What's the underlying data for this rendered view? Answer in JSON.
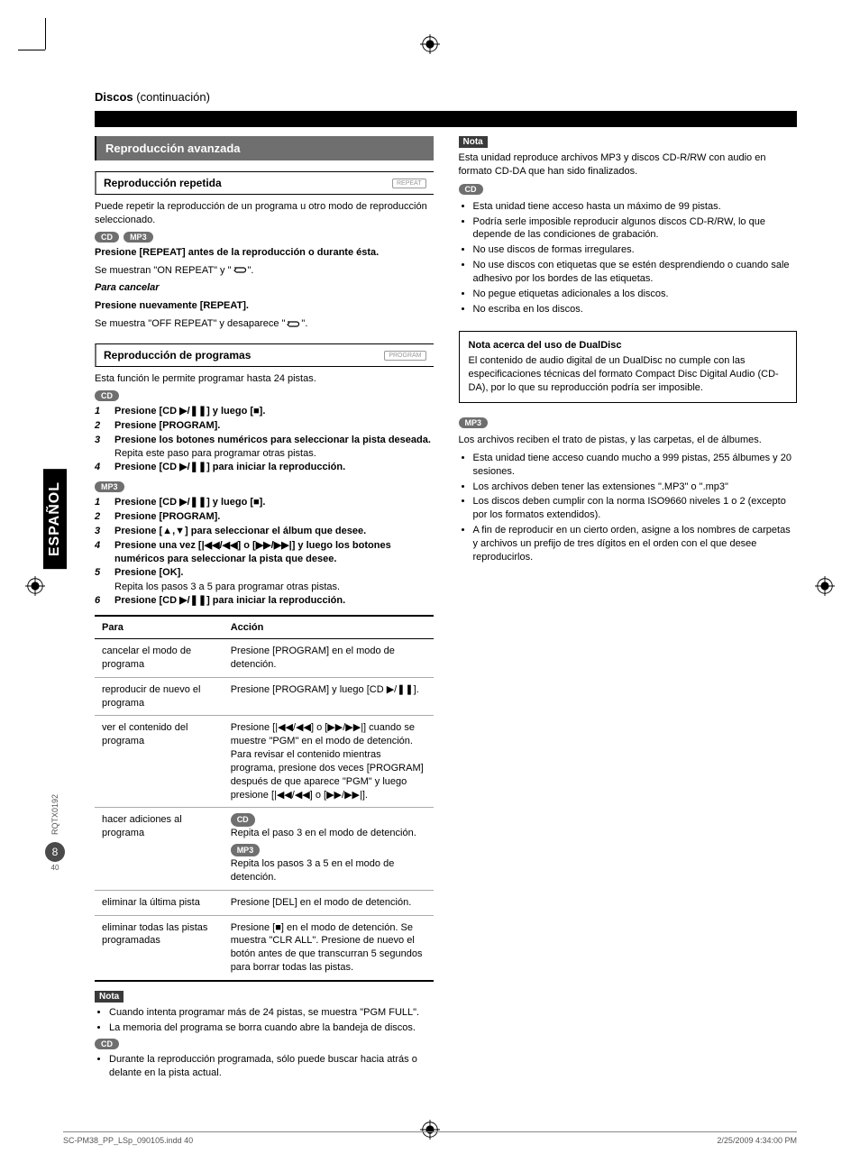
{
  "page": {
    "title_main": "Discos",
    "title_cont": "(continuación)"
  },
  "left": {
    "section": "Reproducción avanzada",
    "repeat": {
      "title": "Reproducción repetida",
      "btn": "REPEAT",
      "intro": "Puede repetir la reproducción de un programa u otro modo de reproducción seleccionado.",
      "pills": [
        "CD",
        "MP3"
      ],
      "line1": "Presione [REPEAT] antes de la reproducción o durante ésta.",
      "line2_a": "Se muestran \"ON REPEAT\" y \"",
      "line2_b": "\".",
      "cancel_h": "Para cancelar",
      "cancel1": "Presione nuevamente [REPEAT].",
      "cancel2_a": "Se muestra \"OFF REPEAT\" y desaparece \"",
      "cancel2_b": "\"."
    },
    "program": {
      "title": "Reproducción de programas",
      "btn": "PROGRAM",
      "intro": "Esta función le permite programar hasta 24 pistas.",
      "cd_pill": "CD",
      "cd_steps": [
        {
          "n": "1",
          "t": "Presione [CD ▶/❚❚] y luego [■]."
        },
        {
          "n": "2",
          "t": "Presione [PROGRAM]."
        },
        {
          "n": "3",
          "t": "Presione los botones numéricos para seleccionar la pista deseada."
        },
        {
          "n": "",
          "sub": "Repita este paso para programar otras pistas."
        },
        {
          "n": "4",
          "t": "Presione [CD ▶/❚❚] para iniciar la reproducción."
        }
      ],
      "mp3_pill": "MP3",
      "mp3_steps": [
        {
          "n": "1",
          "t": "Presione [CD ▶/❚❚] y luego [■]."
        },
        {
          "n": "2",
          "t": "Presione [PROGRAM]."
        },
        {
          "n": "3",
          "t": "Presione [▲,▼] para seleccionar el álbum que desee."
        },
        {
          "n": "4",
          "t": "Presione una vez [|◀◀/◀◀] o [▶▶/▶▶|] y luego los botones numéricos para seleccionar la pista que desee."
        },
        {
          "n": "5",
          "t": "Presione [OK]."
        },
        {
          "n": "",
          "sub": "Repita los pasos 3 a 5 para programar otras pistas."
        },
        {
          "n": "6",
          "t": "Presione [CD ▶/❚❚] para iniciar la reproducción."
        }
      ],
      "table": {
        "h1": "Para",
        "h2": "Acción",
        "rows": [
          {
            "para": "cancelar el modo de programa",
            "accion": "Presione [PROGRAM] en el modo de detención."
          },
          {
            "para": "reproducir de nuevo el programa",
            "accion": "Presione [PROGRAM] y luego [CD ▶/❚❚]."
          },
          {
            "para": "ver el contenido del programa",
            "accion": "Presione [|◀◀/◀◀] o [▶▶/▶▶|] cuando se muestre \"PGM\" en el modo de detención. Para revisar el contenido mientras programa, presione dos veces [PROGRAM] después de que aparece \"PGM\" y luego presione [|◀◀/◀◀] o [▶▶/▶▶|]."
          },
          {
            "para": "hacer adiciones al programa",
            "accion_cd": "Repita el paso 3 en el modo de detención.",
            "accion_mp3": "Repita los pasos 3 a 5 en el modo de detención."
          },
          {
            "para": "eliminar la última pista",
            "accion": "Presione [DEL] en el modo de detención."
          },
          {
            "para": "eliminar todas las pistas programadas",
            "accion": "Presione [■] en el modo de detención. Se muestra \"CLR ALL\". Presione de nuevo el botón antes de que transcurran 5 segundos para borrar todas las pistas."
          }
        ]
      },
      "note_label": "Nota",
      "notes": [
        "Cuando intenta programar más de 24 pistas, se muestra \"PGM FULL\".",
        "La memoria del programa se borra cuando abre la bandeja de discos."
      ],
      "cd_note_pill": "CD",
      "cd_notes": [
        "Durante la reproducción programada, sólo puede buscar hacia atrás o delante en la pista actual."
      ]
    }
  },
  "right": {
    "note_label": "Nota",
    "intro": "Esta unidad reproduce archivos MP3 y discos CD-R/RW con audio en formato CD-DA que han sido finalizados.",
    "cd_pill": "CD",
    "cd_bullets": [
      "Esta unidad tiene acceso hasta un máximo de 99 pistas.",
      "Podría serle imposible reproducir algunos discos CD-R/RW, lo que depende de las condiciones de grabación.",
      "No use discos de formas irregulares.",
      "No use discos con etiquetas que se estén desprendiendo o cuando sale adhesivo por los bordes de las etiquetas.",
      "No pegue etiquetas adicionales a los discos.",
      "No escriba en los discos."
    ],
    "dualdisc": {
      "title": "Nota acerca del uso de DualDisc",
      "body": "El contenido de audio digital de un DualDisc no cumple con las especificaciones técnicas del formato Compact Disc Digital Audio (CD-DA), por lo que su reproducción podría ser imposible."
    },
    "mp3_pill": "MP3",
    "mp3_intro": "Los archivos reciben el trato de pistas, y las carpetas, el de álbumes.",
    "mp3_bullets": [
      "Esta unidad tiene acceso cuando mucho a 999 pistas, 255 álbumes y 20 sesiones.",
      "Los archivos deben tener las extensiones \".MP3\" o \".mp3\"",
      "Los discos deben cumplir con la norma ISO9660 niveles 1 o 2 (excepto por los formatos extendidos).",
      "A fin de reproducir en un cierto orden, asigne a los nombres de carpetas y archivos un prefijo de tres dígitos en el orden con el que desee reproducirlos."
    ]
  },
  "side": {
    "lang": "ESPAÑOL",
    "code": "RQTX0192",
    "badge": "8",
    "small": "40"
  },
  "footer": {
    "left": "SC-PM38_PP_LSp_090105.indd   40",
    "right": "2/25/2009   4:34:00 PM"
  }
}
